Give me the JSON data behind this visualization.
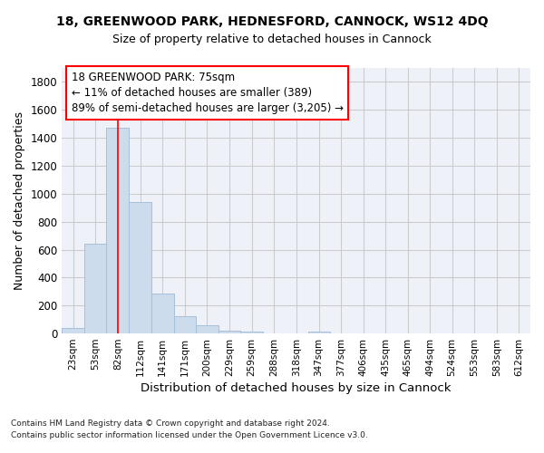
{
  "title1": "18, GREENWOOD PARK, HEDNESFORD, CANNOCK, WS12 4DQ",
  "title2": "Size of property relative to detached houses in Cannock",
  "xlabel": "Distribution of detached houses by size in Cannock",
  "ylabel": "Number of detached properties",
  "footer1": "Contains HM Land Registry data © Crown copyright and database right 2024.",
  "footer2": "Contains public sector information licensed under the Open Government Licence v3.0.",
  "annotation_line1": "18 GREENWOOD PARK: 75sqm",
  "annotation_line2": "← 11% of detached houses are smaller (389)",
  "annotation_line3": "89% of semi-detached houses are larger (3,205) →",
  "bar_color": "#ccdcec",
  "bar_edge_color": "#a8c0d8",
  "grid_color": "#cccccc",
  "background_color": "#eef2f8",
  "property_line_x": 82,
  "categories": [
    "23sqm",
    "53sqm",
    "82sqm",
    "112sqm",
    "141sqm",
    "171sqm",
    "200sqm",
    "229sqm",
    "259sqm",
    "288sqm",
    "318sqm",
    "347sqm",
    "377sqm",
    "406sqm",
    "435sqm",
    "465sqm",
    "494sqm",
    "524sqm",
    "553sqm",
    "583sqm",
    "612sqm"
  ],
  "bin_edges": [
    8,
    38,
    67,
    97,
    126,
    156,
    185,
    215,
    244,
    274,
    303,
    333,
    362,
    392,
    421,
    450,
    480,
    509,
    538,
    568,
    597,
    627
  ],
  "values": [
    40,
    645,
    1470,
    940,
    285,
    125,
    60,
    22,
    15,
    0,
    0,
    12,
    0,
    0,
    0,
    0,
    0,
    0,
    0,
    0,
    0
  ],
  "ylim": [
    0,
    1900
  ],
  "yticks": [
    0,
    200,
    400,
    600,
    800,
    1000,
    1200,
    1400,
    1600,
    1800
  ]
}
